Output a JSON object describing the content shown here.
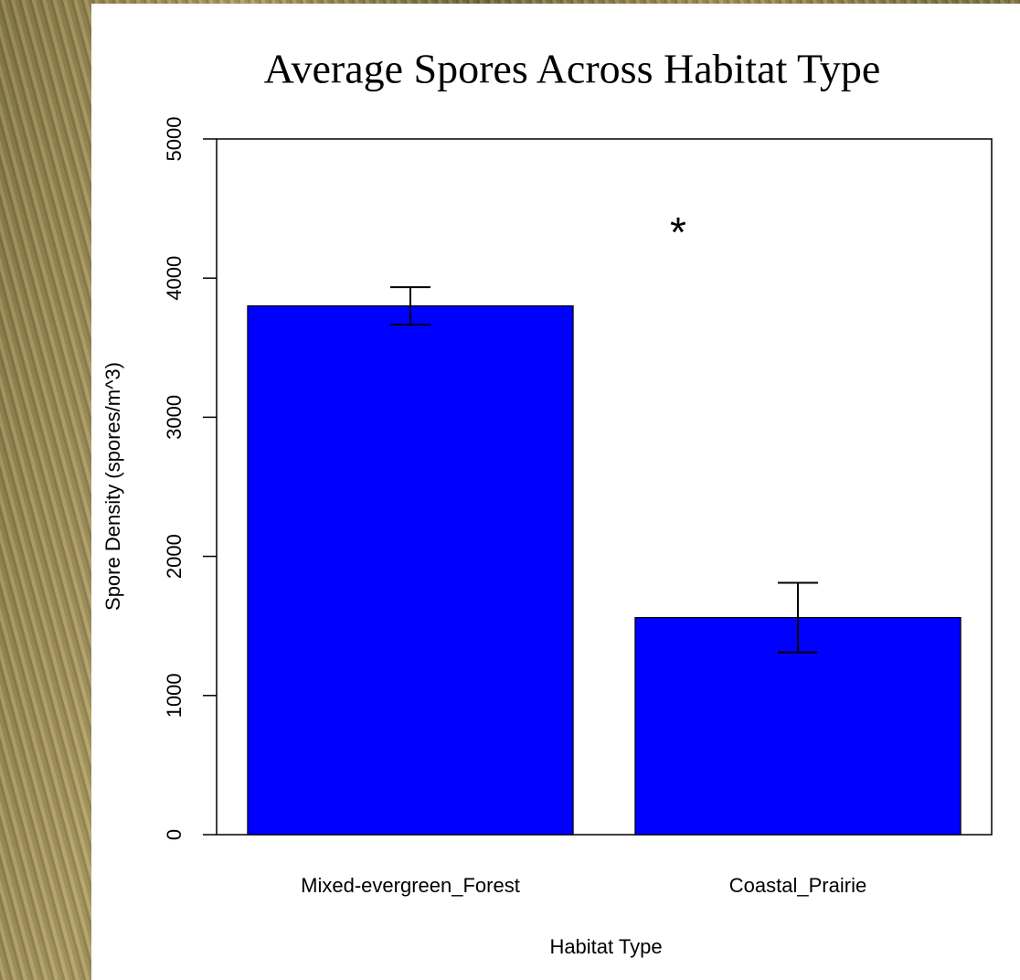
{
  "chart_data": {
    "type": "bar",
    "title": "Average Spores Across Habitat Type",
    "x_label": "Habitat Type",
    "y_label": "Spore Density (spores/m^3)",
    "categories": [
      "Mixed-evergreen_Forest",
      "Coastal_Prairie"
    ],
    "values": [
      3800,
      1560
    ],
    "errors": [
      135,
      250
    ],
    "color": "#0000ff",
    "ylim": [
      0,
      5000
    ],
    "yticks": [
      0,
      1000,
      2000,
      3000,
      4000,
      5000
    ],
    "annotation": "*"
  }
}
